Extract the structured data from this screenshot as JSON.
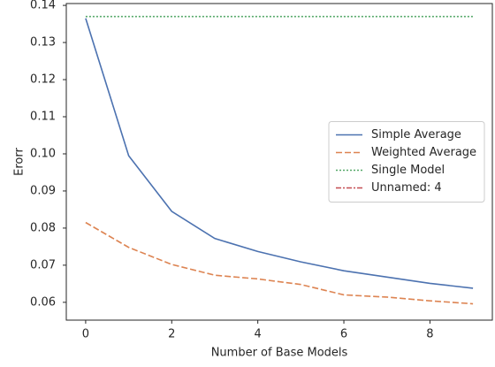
{
  "chart_data": {
    "type": "line",
    "xlabel": "Number of Base Models",
    "ylabel": "Erorr",
    "x": [
      0,
      1,
      2,
      3,
      4,
      5,
      6,
      7,
      8,
      9
    ],
    "series": [
      {
        "name": "Simple Average",
        "color": "#4c72b0",
        "style": "solid",
        "values": [
          0.1365,
          0.0995,
          0.0845,
          0.0772,
          0.0737,
          0.0709,
          0.0685,
          0.0668,
          0.0651,
          0.0638
        ]
      },
      {
        "name": "Weighted Average",
        "color": "#dd8452",
        "style": "dashed",
        "values": [
          0.0815,
          0.0748,
          0.0702,
          0.0673,
          0.0663,
          0.0648,
          0.062,
          0.0614,
          0.0604,
          0.0596
        ]
      },
      {
        "name": "Single Model",
        "color": "#55a868",
        "style": "dotted",
        "values": [
          0.137,
          0.137,
          0.137,
          0.137,
          0.137,
          0.137,
          0.137,
          0.137,
          0.137,
          0.137
        ]
      },
      {
        "name": "Unnamed: 4",
        "color": "#c44e52",
        "style": "dashdot",
        "values": [
          null,
          null,
          null,
          null,
          null,
          null,
          null,
          null,
          null,
          null
        ]
      }
    ],
    "xlim": [
      -0.45,
      9.45
    ],
    "xticks": [
      0,
      2,
      4,
      6,
      8
    ],
    "ylim": [
      0.0552,
      0.1405
    ],
    "yticks": [
      0.06,
      0.07,
      0.08,
      0.09,
      {
        "value": 0.1,
        "label": "0.10"
      },
      0.11,
      0.12,
      0.13,
      0.14
    ],
    "legend": "center right",
    "grid": false
  }
}
